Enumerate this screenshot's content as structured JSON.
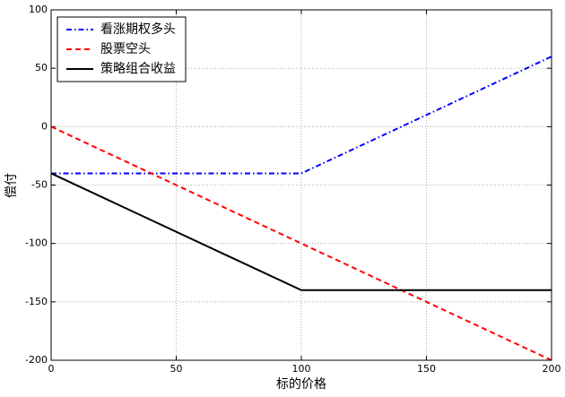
{
  "chart_data": {
    "type": "line",
    "x_label": "标的价格",
    "y_label": "偿付",
    "x": [
      0,
      100,
      200
    ],
    "series": [
      {
        "name": "看涨期权多头",
        "color": "#0000ff",
        "style": "dashdot",
        "values": [
          -40,
          -40,
          60
        ]
      },
      {
        "name": "股票空头",
        "color": "#ff0000",
        "style": "dashed",
        "values": [
          0,
          -100,
          -200
        ]
      },
      {
        "name": "策略组合收益",
        "color": "#000000",
        "style": "solid",
        "values": [
          -40,
          -140,
          -140
        ]
      }
    ],
    "xlim": [
      0,
      200
    ],
    "xticks": [
      0,
      50,
      100,
      150,
      200
    ],
    "ylim": [
      -200,
      100
    ],
    "yticks": [
      -200,
      -150,
      -100,
      -50,
      0,
      50,
      100
    ],
    "grid": true,
    "legend": "upper left"
  }
}
